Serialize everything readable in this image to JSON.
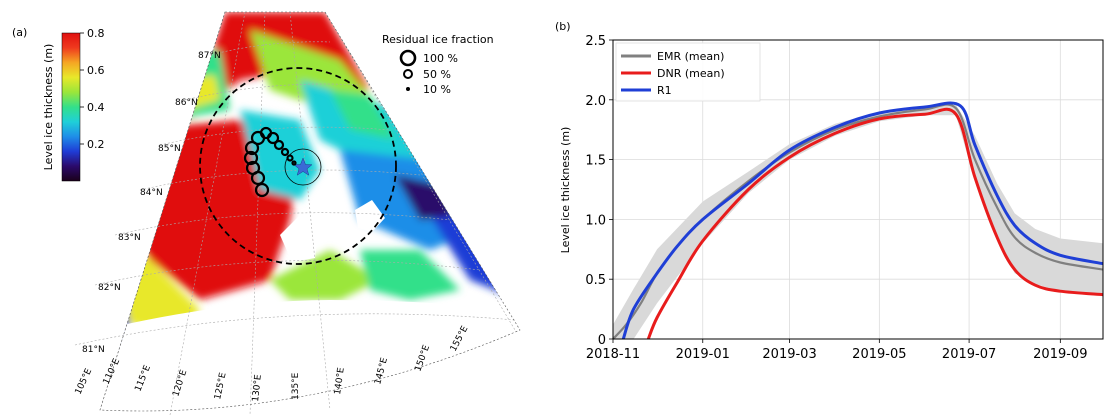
{
  "panels": {
    "a": {
      "label": "(a)",
      "colorbar": {
        "label": "Level ice thickness (m)",
        "ticks": [
          "0.8",
          "0.6",
          "0.4",
          "0.2"
        ],
        "tick_values": [
          0.8,
          0.6,
          0.4,
          0.2
        ],
        "range": [
          0.0,
          0.8
        ],
        "colormap": [
          "#1a001a",
          "#2b0a6b",
          "#1f3cd6",
          "#1f8ee8",
          "#1fd0d8",
          "#33e08a",
          "#9be63a",
          "#e8e82a",
          "#f5a623",
          "#ef3a1e",
          "#e01010"
        ]
      },
      "legend": {
        "title": "Residual ice fraction",
        "items": [
          {
            "label": "100 %",
            "fraction": 100
          },
          {
            "label": "50 %",
            "fraction": 50
          },
          {
            "label": "10 %",
            "fraction": 10
          }
        ]
      },
      "lat_labels": [
        "87°N",
        "86°N",
        "85°N",
        "84°N",
        "83°N",
        "82°N",
        "81°N"
      ],
      "lon_labels": [
        "105°E",
        "110°E",
        "115°E",
        "120°E",
        "125°E",
        "130°E",
        "135°E",
        "140°E",
        "145°E",
        "150°E",
        "155°E"
      ],
      "colors": {
        "ring": "#000000",
        "star": "#3b6ad6",
        "dashed_circle": "#000000"
      }
    },
    "b": {
      "label": "(b)",
      "chart_data": {
        "type": "line",
        "title": "",
        "xlabel": "",
        "ylabel": "Level ice thickness (m)",
        "xlim": [
          "2018-11-01",
          "2019-09-30"
        ],
        "ylim": [
          0,
          2.5
        ],
        "x_ticks": [
          "2018-11",
          "2019-01",
          "2019-03",
          "2019-05",
          "2019-07",
          "2019-09"
        ],
        "y_ticks": [
          "0",
          "0.5",
          "1.0",
          "1.5",
          "2.0",
          "2.5"
        ],
        "grid": true,
        "legend_position": "top-left",
        "series": [
          {
            "name": "EMR (mean)",
            "color": "#808080",
            "x": [
              "2018-11-01",
              "2018-11-10",
              "2018-11-20",
              "2018-12-01",
              "2018-12-15",
              "2019-01-01",
              "2019-02-01",
              "2019-03-01",
              "2019-04-01",
              "2019-05-01",
              "2019-06-01",
              "2019-06-22",
              "2019-07-05",
              "2019-07-20",
              "2019-08-01",
              "2019-08-15",
              "2019-09-01",
              "2019-09-30"
            ],
            "y": [
              0.0,
              0.12,
              0.3,
              0.55,
              0.78,
              1.0,
              1.32,
              1.56,
              1.75,
              1.86,
              1.92,
              1.93,
              1.5,
              1.1,
              0.85,
              0.72,
              0.64,
              0.58
            ]
          },
          {
            "name": "DNR (mean)",
            "color": "#e81c1c",
            "x": [
              "2018-11-25",
              "2018-12-01",
              "2018-12-15",
              "2019-01-01",
              "2019-02-01",
              "2019-03-01",
              "2019-04-01",
              "2019-05-01",
              "2019-06-01",
              "2019-06-22",
              "2019-07-05",
              "2019-07-20",
              "2019-08-01",
              "2019-08-15",
              "2019-09-01",
              "2019-09-30"
            ],
            "y": [
              0.0,
              0.18,
              0.48,
              0.82,
              1.25,
              1.52,
              1.72,
              1.84,
              1.88,
              1.88,
              1.35,
              0.85,
              0.58,
              0.45,
              0.4,
              0.37
            ]
          },
          {
            "name": "R1",
            "color": "#1f3fd6",
            "x": [
              "2018-11-08",
              "2018-11-15",
              "2018-12-01",
              "2018-12-15",
              "2019-01-01",
              "2019-02-01",
              "2019-03-01",
              "2019-04-01",
              "2019-05-01",
              "2019-06-01",
              "2019-06-25",
              "2019-07-05",
              "2019-07-20",
              "2019-08-01",
              "2019-08-15",
              "2019-09-01",
              "2019-09-30"
            ],
            "y": [
              0.0,
              0.25,
              0.55,
              0.78,
              1.0,
              1.3,
              1.58,
              1.77,
              1.89,
              1.94,
              1.95,
              1.62,
              1.2,
              0.95,
              0.8,
              0.7,
              0.63
            ]
          }
        ],
        "envelope": {
          "color": "#d9d9d9",
          "x": [
            "2018-11-01",
            "2018-11-15",
            "2018-12-01",
            "2019-01-01",
            "2019-02-01",
            "2019-03-01",
            "2019-04-01",
            "2019-05-01",
            "2019-06-01",
            "2019-06-22",
            "2019-07-05",
            "2019-07-20",
            "2019-08-01",
            "2019-08-15",
            "2019-09-01",
            "2019-09-30"
          ],
          "lower": [
            0.0,
            0.0,
            0.3,
            0.8,
            1.22,
            1.5,
            1.7,
            1.82,
            1.87,
            1.87,
            1.32,
            0.82,
            0.55,
            0.46,
            0.4,
            0.37
          ],
          "upper": [
            0.12,
            0.42,
            0.75,
            1.15,
            1.4,
            1.63,
            1.8,
            1.9,
            1.95,
            1.96,
            1.7,
            1.3,
            1.05,
            0.92,
            0.84,
            0.8
          ]
        }
      }
    }
  }
}
